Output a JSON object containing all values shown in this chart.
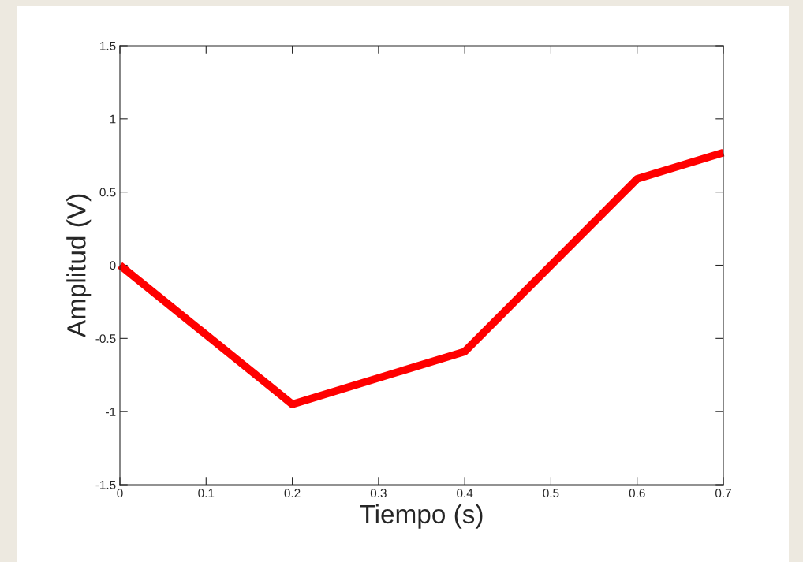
{
  "chart_data": {
    "type": "line",
    "xlabel": "Tiempo (s)",
    "ylabel": "Amplitud (V)",
    "x": [
      0,
      0.2,
      0.4,
      0.6,
      0.7
    ],
    "series": [
      {
        "color": "#ff0000",
        "values": [
          0,
          -0.95,
          -0.59,
          0.59,
          0.77
        ]
      }
    ],
    "xlim": [
      0,
      0.7
    ],
    "xticks": [
      0,
      0.1,
      0.2,
      0.3,
      0.4,
      0.5,
      0.6,
      0.7
    ],
    "ylim": [
      -1.5,
      1.5
    ],
    "yticks": [
      -1.5,
      -1,
      -0.5,
      0,
      0.5,
      1,
      1.5
    ],
    "grid": false,
    "marker": "none",
    "line_style": "solid"
  }
}
